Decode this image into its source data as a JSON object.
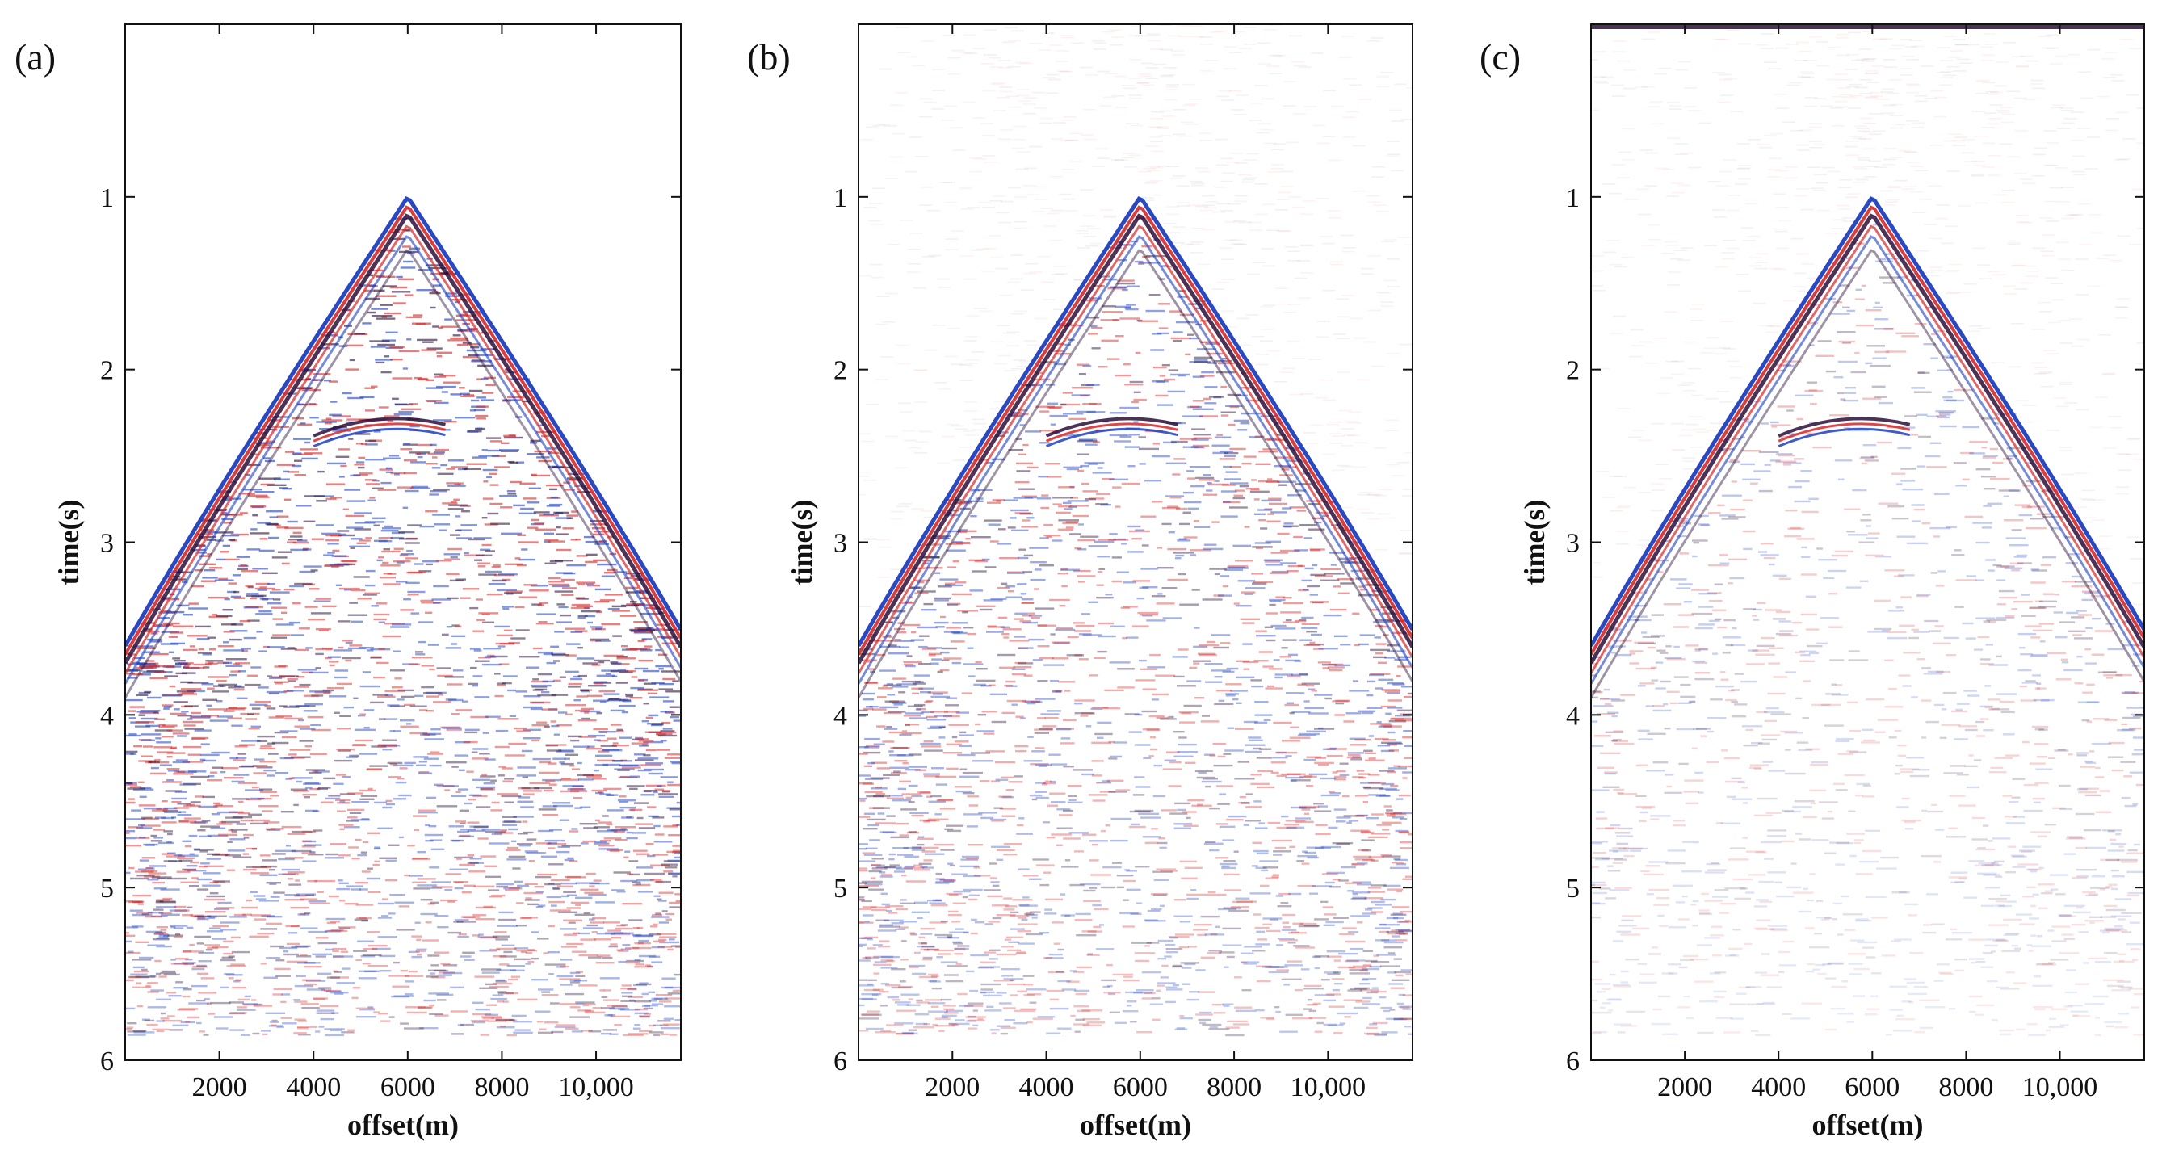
{
  "chart_data": [
    {
      "type": "heatmap",
      "panel_label": "(a)",
      "xlabel": "offset(m)",
      "ylabel": "time(s)",
      "xlim": [
        0,
        11800
      ],
      "ylim": [
        0,
        6
      ],
      "y_inverted": true,
      "x_ticks": [
        2000,
        4000,
        6000,
        8000,
        10000
      ],
      "x_tick_labels": [
        "2000",
        "4000",
        "6000",
        "8000",
        "10,000"
      ],
      "y_ticks": [
        1,
        2,
        3,
        4,
        5,
        6
      ],
      "y_tick_labels": [
        "1",
        "2",
        "3",
        "4",
        "5",
        "6"
      ],
      "first_arrival": {
        "apex_offset": 6000,
        "apex_time": 1.0,
        "edge_time_left": 3.6,
        "edge_time_right": 3.6
      },
      "secondary_event": {
        "offset_start": 4000,
        "offset_end": 6800,
        "time": 2.3
      },
      "noise_level": "high",
      "colors": {
        "positive": "#d62828",
        "negative": "#1d3fbf",
        "dark": "#2a0f3a",
        "background": "#ffffff"
      }
    },
    {
      "type": "heatmap",
      "panel_label": "(b)",
      "xlabel": "offset(m)",
      "ylabel": "time(s)",
      "xlim": [
        0,
        11800
      ],
      "ylim": [
        0,
        6
      ],
      "y_inverted": true,
      "x_ticks": [
        2000,
        4000,
        6000,
        8000,
        10000
      ],
      "x_tick_labels": [
        "2000",
        "4000",
        "6000",
        "8000",
        "10,000"
      ],
      "y_ticks": [
        1,
        2,
        3,
        4,
        5,
        6
      ],
      "y_tick_labels": [
        "1",
        "2",
        "3",
        "4",
        "5",
        "6"
      ],
      "first_arrival": {
        "apex_offset": 6000,
        "apex_time": 1.0,
        "edge_time_left": 3.6,
        "edge_time_right": 3.6
      },
      "secondary_event": {
        "offset_start": 4000,
        "offset_end": 6800,
        "time": 2.3
      },
      "noise_level": "medium",
      "colors": {
        "positive": "#d62828",
        "negative": "#1d3fbf",
        "dark": "#2a0f3a",
        "background": "#ffffff"
      }
    },
    {
      "type": "heatmap",
      "panel_label": "(c)",
      "xlabel": "offset(m)",
      "ylabel": "time(s)",
      "xlim": [
        0,
        11800
      ],
      "ylim": [
        0,
        6
      ],
      "y_inverted": true,
      "x_ticks": [
        2000,
        4000,
        6000,
        8000,
        10000
      ],
      "x_tick_labels": [
        "2000",
        "4000",
        "6000",
        "8000",
        "10,000"
      ],
      "y_ticks": [
        1,
        2,
        3,
        4,
        5,
        6
      ],
      "y_tick_labels": [
        "1",
        "2",
        "3",
        "4",
        "5",
        "6"
      ],
      "first_arrival": {
        "apex_offset": 6000,
        "apex_time": 1.0,
        "edge_time_left": 3.6,
        "edge_time_right": 3.6
      },
      "secondary_event": {
        "offset_start": 4000,
        "offset_end": 6800,
        "time": 2.3
      },
      "noise_level": "low",
      "colors": {
        "positive": "#d62828",
        "negative": "#1d3fbf",
        "dark": "#2a0f3a",
        "background": "#ffffff"
      }
    }
  ]
}
